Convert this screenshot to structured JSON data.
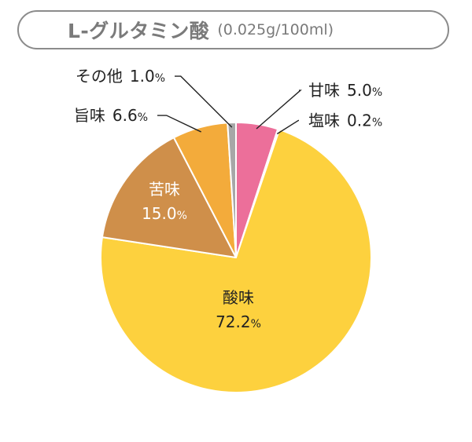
{
  "title": {
    "main": "L-グルタミン酸",
    "sub": "(0.025g/100ml)"
  },
  "chart_data": {
    "type": "pie",
    "title": "L-グルタミン酸 (0.025g/100ml)",
    "categories": [
      "甘味",
      "塩味",
      "酸味",
      "苦味",
      "旨味",
      "その他"
    ],
    "values": [
      5.0,
      0.2,
      72.2,
      15.0,
      6.6,
      1.0
    ],
    "value_labels": [
      "5.0",
      "0.2",
      "72.2",
      "15.0",
      "6.6",
      "1.0"
    ],
    "unit": "%",
    "colors": [
      "#ec6f9a",
      "#3d9fd8",
      "#fdd13e",
      "#cf8f4a",
      "#f3ab3b",
      "#a7a7a7"
    ],
    "start_angle_deg": 0,
    "direction": "clockwise"
  }
}
